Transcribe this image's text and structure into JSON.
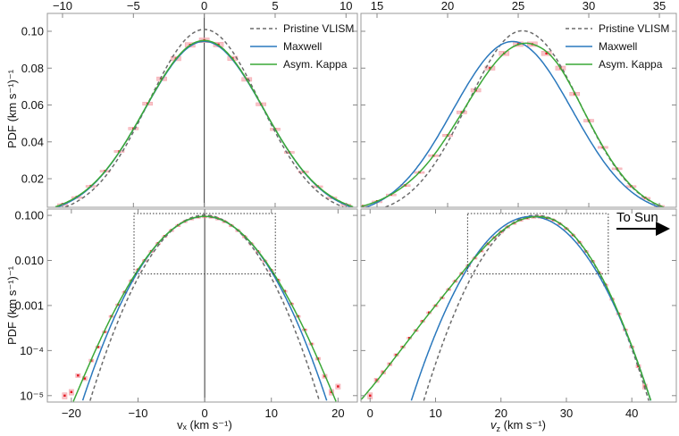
{
  "chart_data": {
    "type": "line",
    "colors": {
      "pristine": "#6b6b6b",
      "maxwell": "#2a78bd",
      "kappa": "#3aa837",
      "hist_point": "#e3141c",
      "hist_box": "#f5a9b0"
    },
    "legend": {
      "placement": "top-right",
      "entries": [
        "Pristine VLISM",
        "Maxwell",
        "Asym. Kappa"
      ]
    },
    "ylabel": "PDF (km s⁻¹)⁻¹",
    "xlabels": {
      "vx": "vₓ (km s⁻¹)",
      "vz": "v_z (km s⁻¹)"
    },
    "xlabel_parts": {
      "vx": {
        "v": "v",
        "sub": "x",
        "rest": " (km s⁻¹)"
      },
      "vz": {
        "v": "v",
        "sub": "z",
        "rest": " (km s⁻¹)"
      }
    },
    "annotation": "To Sun",
    "components": {
      "vx": {
        "models": {
          "x": [
            -22,
            -20,
            -18,
            -16,
            -14,
            -12,
            -10,
            -8,
            -6,
            -4,
            -2,
            0,
            2,
            4,
            6,
            8,
            10,
            12,
            14,
            16,
            18,
            20,
            22
          ],
          "pristine": [
            1.9e-08,
            2.7e-07,
            3.1e-06,
            2.76e-05,
            0.000189,
            0.001,
            0.00409,
            0.013,
            0.0319,
            0.0605,
            0.0889,
            0.101,
            0.0889,
            0.0605,
            0.0319,
            0.013,
            0.00409,
            0.001,
            0.000189,
            2.76e-05,
            3.1e-06,
            2.7e-07,
            1.9e-08
          ],
          "maxwell": [
            1.17e-07,
            1.24e-06,
            1.06e-05,
            7.1e-05,
            0.000384,
            0.00165,
            0.0057,
            0.01565,
            0.0344,
            0.0603,
            0.0845,
            0.0945,
            0.0845,
            0.0603,
            0.0344,
            0.01565,
            0.0057,
            0.00165,
            0.000384,
            7.1e-05,
            1.06e-05,
            1.24e-06,
            1.17e-07
          ],
          "kappa": [
            1.1e-06,
            5.8e-06,
            2.9e-05,
            0.000135,
            0.00056,
            0.002,
            0.0062,
            0.016,
            0.0345,
            0.0605,
            0.085,
            0.095,
            0.085,
            0.0605,
            0.0345,
            0.016,
            0.0062,
            0.002,
            0.00056,
            0.000135,
            2.9e-05,
            5.8e-06,
            1.1e-06
          ]
        },
        "histogram": {
          "x": [
            -21,
            -20,
            -19,
            -18,
            -17,
            -16,
            -15,
            -14,
            -13,
            -12,
            -11,
            -10,
            -9,
            -8,
            -7,
            -6,
            -5,
            -4,
            -3,
            -2,
            -1,
            0,
            1,
            2,
            3,
            4,
            5,
            6,
            7,
            8,
            9,
            10,
            11,
            12,
            13,
            14,
            15,
            16,
            17,
            18,
            19,
            20
          ],
          "y": [
            1e-05,
            1.2e-05,
            2.8e-05,
            2.4e-05,
            6e-05,
            0.00012,
            0.00026,
            0.00058,
            0.00105,
            0.002,
            0.0036,
            0.0063,
            0.0101,
            0.0161,
            0.0242,
            0.0348,
            0.0472,
            0.0607,
            0.0742,
            0.0852,
            0.0926,
            0.0951,
            0.0928,
            0.0853,
            0.0739,
            0.0604,
            0.0468,
            0.0343,
            0.0238,
            0.0159,
            0.0099,
            0.0061,
            0.0037,
            0.0021,
            0.0011,
            0.00058,
            0.00029,
            0.00014,
            6.6e-05,
            2.7e-05,
            1.2e-05,
            1.6e-05
          ]
        }
      },
      "vz": {
        "models": {
          "x": [
            -2,
            0,
            2,
            4,
            6,
            8,
            10,
            12,
            14,
            16,
            18,
            20,
            22,
            24,
            26,
            28,
            30,
            32,
            34,
            36,
            38,
            40,
            42,
            44,
            46
          ],
          "pristine": [
            3.6e-12,
            1.06e-10,
            2.4e-09,
            4.3e-08,
            5.8e-07,
            6.2e-06,
            5.05e-05,
            0.000319,
            0.00157,
            0.00594,
            0.01745,
            0.0397,
            0.0697,
            0.0949,
            0.0989,
            0.0813,
            0.0513,
            0.025,
            0.00944,
            0.00275,
            0.00062,
            0.000109,
            1.47e-05,
            1.55e-06,
            1.25e-07
          ],
          "maxwell": [
            2.2e-10,
            3.9e-09,
            5.6e-08,
            6.3e-07,
            5.7e-06,
            4.1e-05,
            0.000237,
            0.00109,
            0.00402,
            0.01183,
            0.0278,
            0.0522,
            0.0781,
            0.0935,
            0.0894,
            0.0683,
            0.0417,
            0.0203,
            0.0079,
            0.00246,
            0.00061,
            0.000121,
            1.91e-05,
            2.42e-06,
            2.45e-07
          ],
          "kappa": [
            7e-06,
            1.4e-05,
            3.2e-05,
            7.6e-05,
            0.00018,
            0.00043,
            0.001,
            0.0023,
            0.0052,
            0.0115,
            0.0235,
            0.0435,
            0.068,
            0.088,
            0.093,
            0.08,
            0.0515,
            0.0255,
            0.0097,
            0.0029,
            0.00066,
            0.000125,
            1.9e-05,
            2.5e-06,
            2.6e-07
          ]
        },
        "histogram": {
          "x": [
            0,
            1,
            2,
            3,
            4,
            5,
            6,
            7,
            8,
            9,
            10,
            11,
            12,
            13,
            14,
            15,
            16,
            17,
            18,
            19,
            20,
            21,
            22,
            23,
            24,
            25,
            26,
            27,
            28,
            29,
            30,
            31,
            32,
            33,
            34,
            35,
            36,
            37,
            38,
            39,
            40,
            41,
            42
          ],
          "y": [
            1e-05,
            2.2e-05,
            3.3e-05,
            5e-05,
            8e-05,
            0.00012,
            0.00019,
            0.00028,
            0.00045,
            0.0007,
            0.001,
            0.0015,
            0.0023,
            0.0035,
            0.0052,
            0.0078,
            0.0115,
            0.0165,
            0.0235,
            0.0325,
            0.0435,
            0.056,
            0.068,
            0.08,
            0.088,
            0.093,
            0.093,
            0.088,
            0.08,
            0.066,
            0.0515,
            0.037,
            0.0255,
            0.016,
            0.0097,
            0.0054,
            0.0029,
            0.0014,
            0.00066,
            0.00029,
            0.00012,
            4.5e-05,
            1.6e-05
          ]
        }
      }
    },
    "panels": [
      {
        "id": "top-left",
        "component": "vx",
        "yscale": "linear",
        "xlim": [
          -11.07,
          10.8
        ],
        "ylim": [
          0.0045,
          0.1097
        ],
        "xticks": [
          -10,
          -5,
          0,
          5,
          10
        ],
        "xtick_labels": [
          "−10",
          "−5",
          "0",
          "5",
          "10"
        ],
        "xtick_side": "top",
        "yticks": [
          0.02,
          0.04,
          0.06,
          0.08,
          0.1
        ],
        "ytick_labels": [
          "0.02",
          "0.04",
          "0.06",
          "0.08",
          "0.10"
        ],
        "vline_at_zero": true,
        "legend": true
      },
      {
        "id": "top-right",
        "component": "vz",
        "yscale": "linear",
        "xlim": [
          13.86,
          36.2
        ],
        "ylim": [
          0.0045,
          0.1097
        ],
        "xticks": [
          15,
          20,
          25,
          30,
          35
        ],
        "xtick_labels": [
          "15",
          "20",
          "25",
          "30",
          "35"
        ],
        "xtick_side": "top",
        "yticks": [
          0.02,
          0.04,
          0.06,
          0.08,
          0.1
        ],
        "ytick_labels": [],
        "legend": true
      },
      {
        "id": "bottom-left",
        "component": "vx",
        "yscale": "log",
        "xlim": [
          -23.6,
          22.9
        ],
        "ylim": [
          7.2e-06,
          0.138
        ],
        "xticks": [
          -20,
          -10,
          0,
          10,
          20
        ],
        "xtick_labels": [
          "−20",
          "−10",
          "0",
          "10",
          "20"
        ],
        "xtick_side": "bottom",
        "yticks": [
          0.1,
          0.01,
          0.001,
          0.0001,
          1e-05
        ],
        "ytick_labels": [
          "0.100",
          "0.010",
          "0.001",
          "10⁻⁴",
          "10⁻⁵"
        ],
        "vline_at_zero": true,
        "zoom_box": {
          "x": [
            -10.6,
            10.6
          ],
          "y": [
            0.005,
            0.11
          ]
        }
      },
      {
        "id": "bottom-right",
        "component": "vz",
        "yscale": "log",
        "xlim": [
          -1.4,
          46.8
        ],
        "ylim": [
          7.2e-06,
          0.138
        ],
        "xticks": [
          0,
          10,
          20,
          30,
          40
        ],
        "xtick_labels": [
          "0",
          "10",
          "20",
          "30",
          "40"
        ],
        "xtick_side": "bottom",
        "yticks": [
          0.1,
          0.01,
          0.001,
          0.0001,
          1e-05
        ],
        "ytick_labels": [],
        "zoom_box": {
          "x": [
            14.9,
            36.4
          ],
          "y": [
            0.005,
            0.11
          ]
        },
        "arrow": true
      }
    ]
  }
}
